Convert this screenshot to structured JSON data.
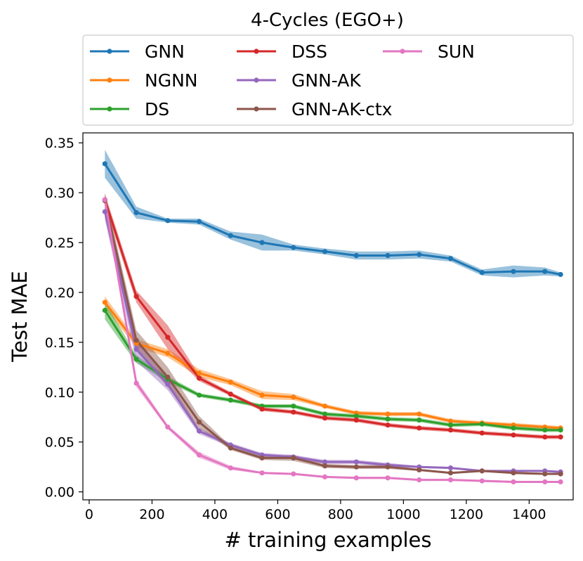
{
  "chart_data": {
    "type": "line",
    "title": "4-Cycles (EGO+)",
    "xlabel": "# training examples",
    "ylabel": "Test MAE",
    "xlim": [
      -20,
      1540
    ],
    "ylim": [
      -0.008,
      0.36
    ],
    "xticks": [
      0,
      200,
      400,
      600,
      800,
      1000,
      1200,
      1400
    ],
    "xtick_labels": [
      "0",
      "200",
      "400",
      "600",
      "800",
      "1000",
      "1200",
      "1400"
    ],
    "yticks": [
      0.0,
      0.05,
      0.1,
      0.15,
      0.2,
      0.25,
      0.3,
      0.35
    ],
    "ytick_labels": [
      "0.00",
      "0.05",
      "0.10",
      "0.15",
      "0.20",
      "0.25",
      "0.30",
      "0.35"
    ],
    "grid": false,
    "legend_position": "top, outside plot, 3 columns",
    "x": [
      50,
      150,
      250,
      350,
      450,
      550,
      650,
      750,
      850,
      950,
      1050,
      1150,
      1250,
      1350,
      1450,
      1500
    ],
    "series": [
      {
        "name": "GNN",
        "color": "#1f77b4",
        "values": [
          0.329,
          0.28,
          0.272,
          0.271,
          0.257,
          0.25,
          0.245,
          0.241,
          0.237,
          0.237,
          0.238,
          0.234,
          0.22,
          0.221,
          0.221,
          0.218
        ],
        "band": [
          0.014,
          0.006,
          0.002,
          0.003,
          0.004,
          0.008,
          0.003,
          0.003,
          0.004,
          0.004,
          0.004,
          0.003,
          0.003,
          0.006,
          0.004,
          0.002
        ]
      },
      {
        "name": "NGNN",
        "color": "#ff7f0e",
        "values": [
          0.19,
          0.149,
          0.139,
          0.119,
          0.11,
          0.097,
          0.095,
          0.086,
          0.079,
          0.078,
          0.078,
          0.071,
          0.069,
          0.067,
          0.065,
          0.064
        ],
        "band": [
          0.006,
          0.004,
          0.004,
          0.004,
          0.003,
          0.004,
          0.003,
          0.002,
          0.002,
          0.002,
          0.002,
          0.002,
          0.002,
          0.002,
          0.002,
          0.002
        ]
      },
      {
        "name": "DS",
        "color": "#2ca02c",
        "values": [
          0.182,
          0.133,
          0.113,
          0.097,
          0.092,
          0.086,
          0.086,
          0.078,
          0.076,
          0.073,
          0.072,
          0.067,
          0.068,
          0.064,
          0.062,
          0.062
        ],
        "band": [
          0.009,
          0.004,
          0.003,
          0.002,
          0.002,
          0.002,
          0.002,
          0.002,
          0.002,
          0.002,
          0.002,
          0.002,
          0.002,
          0.002,
          0.002,
          0.002
        ]
      },
      {
        "name": "DSS",
        "color": "#d62728",
        "values": [
          0.293,
          0.196,
          0.155,
          0.114,
          0.098,
          0.083,
          0.08,
          0.074,
          0.072,
          0.067,
          0.064,
          0.062,
          0.059,
          0.057,
          0.055,
          0.055
        ],
        "band": [
          0.006,
          0.006,
          0.012,
          0.003,
          0.002,
          0.002,
          0.002,
          0.002,
          0.002,
          0.002,
          0.002,
          0.002,
          0.002,
          0.002,
          0.002,
          0.002
        ]
      },
      {
        "name": "GNN-AK",
        "color": "#9467bd",
        "values": [
          0.281,
          0.143,
          0.108,
          0.061,
          0.047,
          0.037,
          0.035,
          0.03,
          0.03,
          0.027,
          0.025,
          0.024,
          0.021,
          0.021,
          0.021,
          0.02
        ],
        "band": [
          0.008,
          0.012,
          0.006,
          0.003,
          0.002,
          0.002,
          0.002,
          0.002,
          0.002,
          0.002,
          0.001,
          0.001,
          0.001,
          0.001,
          0.001,
          0.001
        ]
      },
      {
        "name": "GNN-AK-ctx",
        "color": "#8c564b",
        "values": [
          0.292,
          0.152,
          0.115,
          0.07,
          0.044,
          0.034,
          0.034,
          0.026,
          0.025,
          0.025,
          0.022,
          0.019,
          0.021,
          0.019,
          0.018,
          0.018
        ],
        "band": [
          0.008,
          0.01,
          0.01,
          0.006,
          0.002,
          0.002,
          0.003,
          0.002,
          0.002,
          0.002,
          0.001,
          0.001,
          0.001,
          0.001,
          0.001,
          0.001
        ]
      },
      {
        "name": "SUN",
        "color": "#e377c2",
        "values": [
          0.293,
          0.109,
          0.065,
          0.037,
          0.024,
          0.019,
          0.018,
          0.015,
          0.014,
          0.014,
          0.012,
          0.012,
          0.011,
          0.01,
          0.01,
          0.01
        ],
        "band": [
          0.005,
          0.004,
          0.002,
          0.003,
          0.002,
          0.001,
          0.001,
          0.001,
          0.001,
          0.001,
          0.001,
          0.001,
          0.001,
          0.001,
          0.001,
          0.001
        ]
      }
    ]
  }
}
